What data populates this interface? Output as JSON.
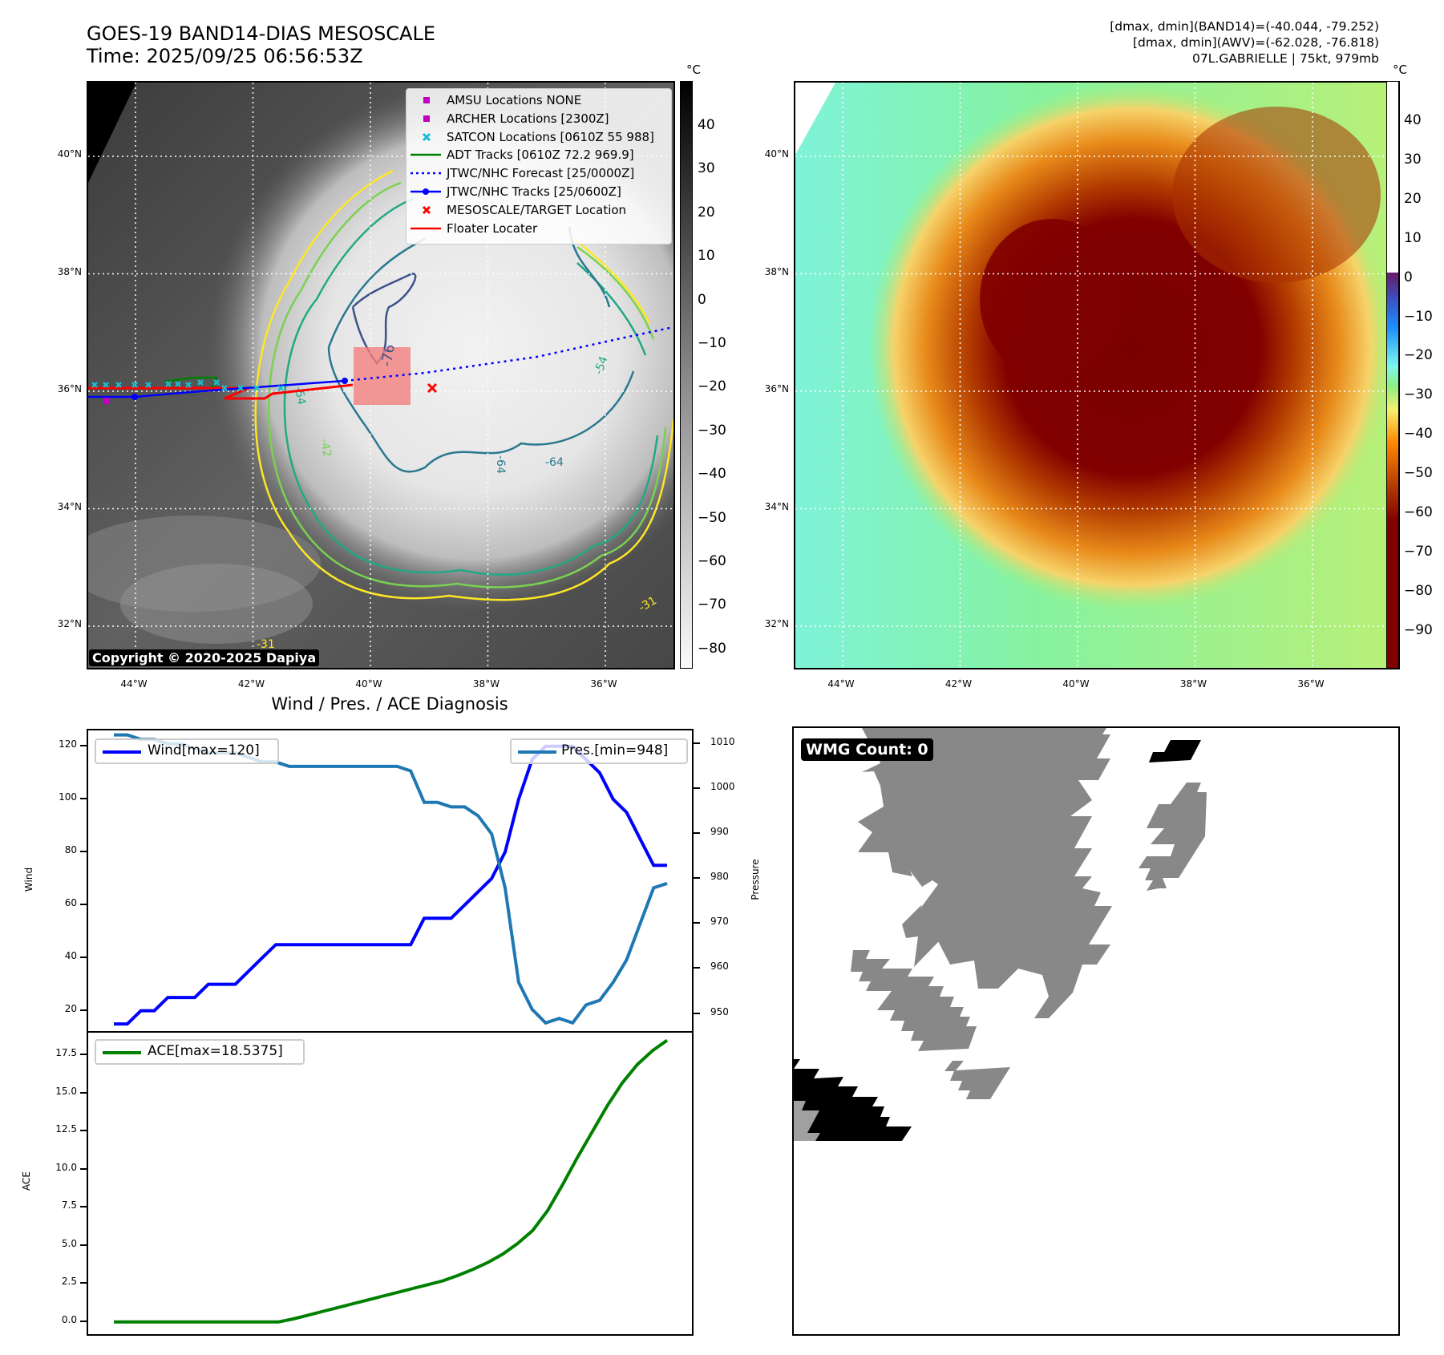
{
  "header": {
    "title_line1": "GOES-19 BAND14-DIAS MESOSCALE",
    "title_line2": "Time: 2025/09/25 06:56:53Z",
    "info_line1": "[dmax, dmin](BAND14)=(-40.044, -79.252)",
    "info_line2": "[dmax, dmin](AWV)=(-62.028, -76.818)",
    "info_line3": "07L.GABRIELLE | 75kt, 979mb"
  },
  "map": {
    "lat_ticks": [
      "40°N",
      "38°N",
      "36°N",
      "34°N",
      "32°N"
    ],
    "lon_ticks": [
      "44°W",
      "42°W",
      "40°W",
      "38°W",
      "36°W"
    ],
    "copyright": "Copyright © 2020-2025 Dapiya",
    "contour_labels": [
      "-76",
      "-54",
      "-54",
      "-42",
      "-64",
      "-64",
      "-31",
      "-31"
    ],
    "legend": [
      {
        "label": "AMSU Locations NONE",
        "marker": "square",
        "color": "#c000c0"
      },
      {
        "label": "ARCHER Locations [2300Z]",
        "marker": "square",
        "color": "#c000c0"
      },
      {
        "label": "SATCON Locations [0610Z 55 988]",
        "marker": "x",
        "color": "#17becf"
      },
      {
        "label": "ADT Tracks [0610Z 72.2 969.9]",
        "marker": "line",
        "color": "#008000"
      },
      {
        "label": "JTWC/NHC Forecast [25/0000Z]",
        "marker": "dotted",
        "color": "#0000ff"
      },
      {
        "label": "JTWC/NHC Tracks [25/0600Z]",
        "marker": "line-dot",
        "color": "#0000ff"
      },
      {
        "label": "MESOSCALE/TARGET Location",
        "marker": "x",
        "color": "#ff0000"
      },
      {
        "label": "Floater Locater",
        "marker": "line",
        "color": "#ff0000"
      }
    ]
  },
  "colorbar_left": {
    "unit": "°C",
    "ticks": [
      "40",
      "30",
      "20",
      "10",
      "0",
      "−10",
      "−20",
      "−30",
      "−40",
      "−50",
      "−60",
      "−70",
      "−80"
    ]
  },
  "colorbar_right": {
    "unit": "°C",
    "ticks": [
      "40",
      "30",
      "20",
      "10",
      "0",
      "−10",
      "−20",
      "−30",
      "−40",
      "−50",
      "−60",
      "−70",
      "−80",
      "−90"
    ]
  },
  "wmg": {
    "badge": "WMG Count: 0"
  },
  "chart_data": [
    {
      "type": "line",
      "title": "Wind / Pres. / ACE Diagnosis",
      "ylabel": "Wind",
      "ylabel_right": "Pressure",
      "ylim": [
        12,
        126
      ],
      "ylim_right": [
        946,
        1013
      ],
      "yticks": [
        "20",
        "40",
        "60",
        "80",
        "100",
        "120"
      ],
      "yticks_right": [
        "950",
        "960",
        "970",
        "980",
        "990",
        "1000",
        "1010"
      ],
      "series": [
        {
          "name": "Wind[max=120]",
          "axis": "left",
          "color": "#0000ff",
          "values": [
            15,
            15,
            20,
            20,
            25,
            25,
            25,
            30,
            30,
            30,
            35,
            40,
            45,
            45,
            45,
            45,
            45,
            45,
            45,
            45,
            45,
            45,
            45,
            55,
            55,
            55,
            60,
            65,
            70,
            80,
            100,
            115,
            120,
            120,
            120,
            115,
            110,
            100,
            95,
            85,
            75,
            75
          ]
        },
        {
          "name": "Pres.[min=948]",
          "axis": "right",
          "color": "#1f77b4",
          "values": [
            1012,
            1012,
            1011,
            1011,
            1010,
            1010,
            1009,
            1008,
            1008,
            1008,
            1007,
            1006,
            1006,
            1005,
            1005,
            1005,
            1005,
            1005,
            1005,
            1005,
            1005,
            1005,
            1004,
            997,
            997,
            996,
            996,
            994,
            990,
            978,
            957,
            951,
            948,
            949,
            948,
            952,
            953,
            957,
            962,
            970,
            978,
            979
          ]
        }
      ]
    },
    {
      "type": "line",
      "ylabel": "ACE",
      "ylim": [
        -0.8,
        19.0
      ],
      "yticks": [
        "0.0",
        "2.5",
        "5.0",
        "7.5",
        "10.0",
        "12.5",
        "15.0",
        "17.5"
      ],
      "series": [
        {
          "name": "ACE[max=18.5375]",
          "color": "#008000",
          "values": [
            0,
            0,
            0,
            0,
            0,
            0,
            0,
            0,
            0,
            0,
            0,
            0,
            0.2,
            0.45,
            0.7,
            0.95,
            1.2,
            1.45,
            1.7,
            1.95,
            2.2,
            2.45,
            2.7,
            3.05,
            3.45,
            3.9,
            4.45,
            5.15,
            6.0,
            7.3,
            9.0,
            10.8,
            12.5,
            14.2,
            15.7,
            16.9,
            17.8,
            18.5
          ]
        }
      ]
    }
  ]
}
